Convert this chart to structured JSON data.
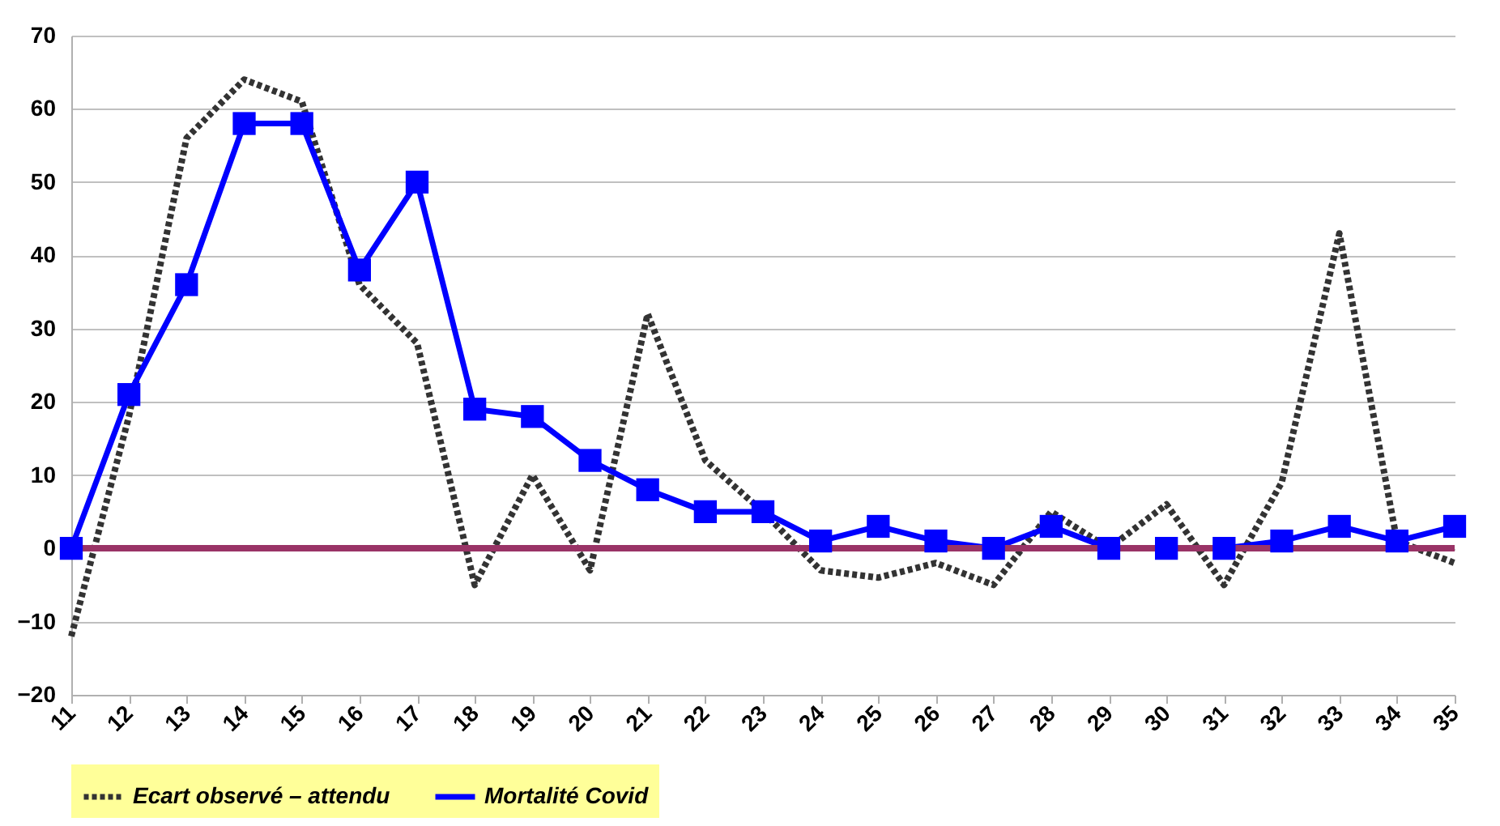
{
  "chart_data": {
    "type": "line",
    "categories": [
      "11",
      "12",
      "13",
      "14",
      "15",
      "16",
      "17",
      "18",
      "19",
      "20",
      "21",
      "22",
      "23",
      "24",
      "25",
      "26",
      "27",
      "28",
      "29",
      "30",
      "31",
      "32",
      "33",
      "34",
      "35"
    ],
    "series": [
      {
        "name": "Ecart observé – attendu",
        "color": "#333333",
        "line_style": "dotted",
        "marker": "none",
        "values": [
          -12,
          18,
          56,
          64,
          61,
          36,
          28,
          -5,
          10,
          -3,
          32,
          12,
          5,
          -3,
          -4,
          -2,
          -5,
          5,
          0,
          6,
          -5,
          9,
          43,
          1,
          -2
        ]
      },
      {
        "name": "Mortalité Covid",
        "color": "#0000ff",
        "line_style": "solid",
        "marker": "square",
        "values": [
          0,
          21,
          36,
          58,
          58,
          38,
          50,
          19,
          18,
          12,
          8,
          5,
          5,
          1,
          3,
          1,
          0,
          3,
          0,
          0,
          0,
          1,
          3,
          1,
          3
        ]
      }
    ],
    "ylim": [
      -20,
      70
    ],
    "yticks": [
      -20,
      -10,
      0,
      10,
      20,
      30,
      40,
      50,
      60,
      70
    ],
    "grid": "y",
    "legend": "bottom",
    "ref_lines": [
      {
        "axis": "y",
        "value": 0,
        "color": "#993366"
      }
    ]
  }
}
